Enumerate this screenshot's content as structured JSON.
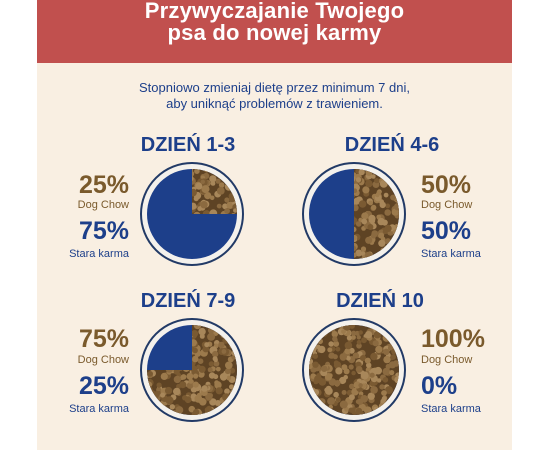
{
  "header": {
    "title_line1": "Przywyczajanie Twojego",
    "title_line2": "psa do nowej karmy"
  },
  "subtitle": {
    "line1": "Stopniowo zmieniaj dietę przez minimum 7 dni,",
    "line2": "aby uniknąć problemów z trawieniem."
  },
  "colors": {
    "header_bg": "#c1504e",
    "card_bg": "#f9efe2",
    "accent_blue": "#1d3f8a",
    "accent_brown": "#7a5a2c",
    "kibble": "#8b6a40"
  },
  "stages": [
    {
      "day": "DZIEŃ 1-3",
      "new_pct": "25%",
      "new_label": "Dog Chow",
      "old_pct": "75%",
      "old_label": "Stara karma",
      "new_fraction": 0.25
    },
    {
      "day": "DZIEŃ 4-6",
      "new_pct": "50%",
      "new_label": "Dog Chow",
      "old_pct": "50%",
      "old_label": "Stara karma",
      "new_fraction": 0.5
    },
    {
      "day": "DZIEŃ 7-9",
      "new_pct": "75%",
      "new_label": "Dog Chow",
      "old_pct": "25%",
      "old_label": "Stara karma",
      "new_fraction": 0.75
    },
    {
      "day": "DZIEŃ 10",
      "new_pct": "100%",
      "new_label": "Dog Chow",
      "old_pct": "0%",
      "old_label": "Stara karma",
      "new_fraction": 1.0
    }
  ]
}
